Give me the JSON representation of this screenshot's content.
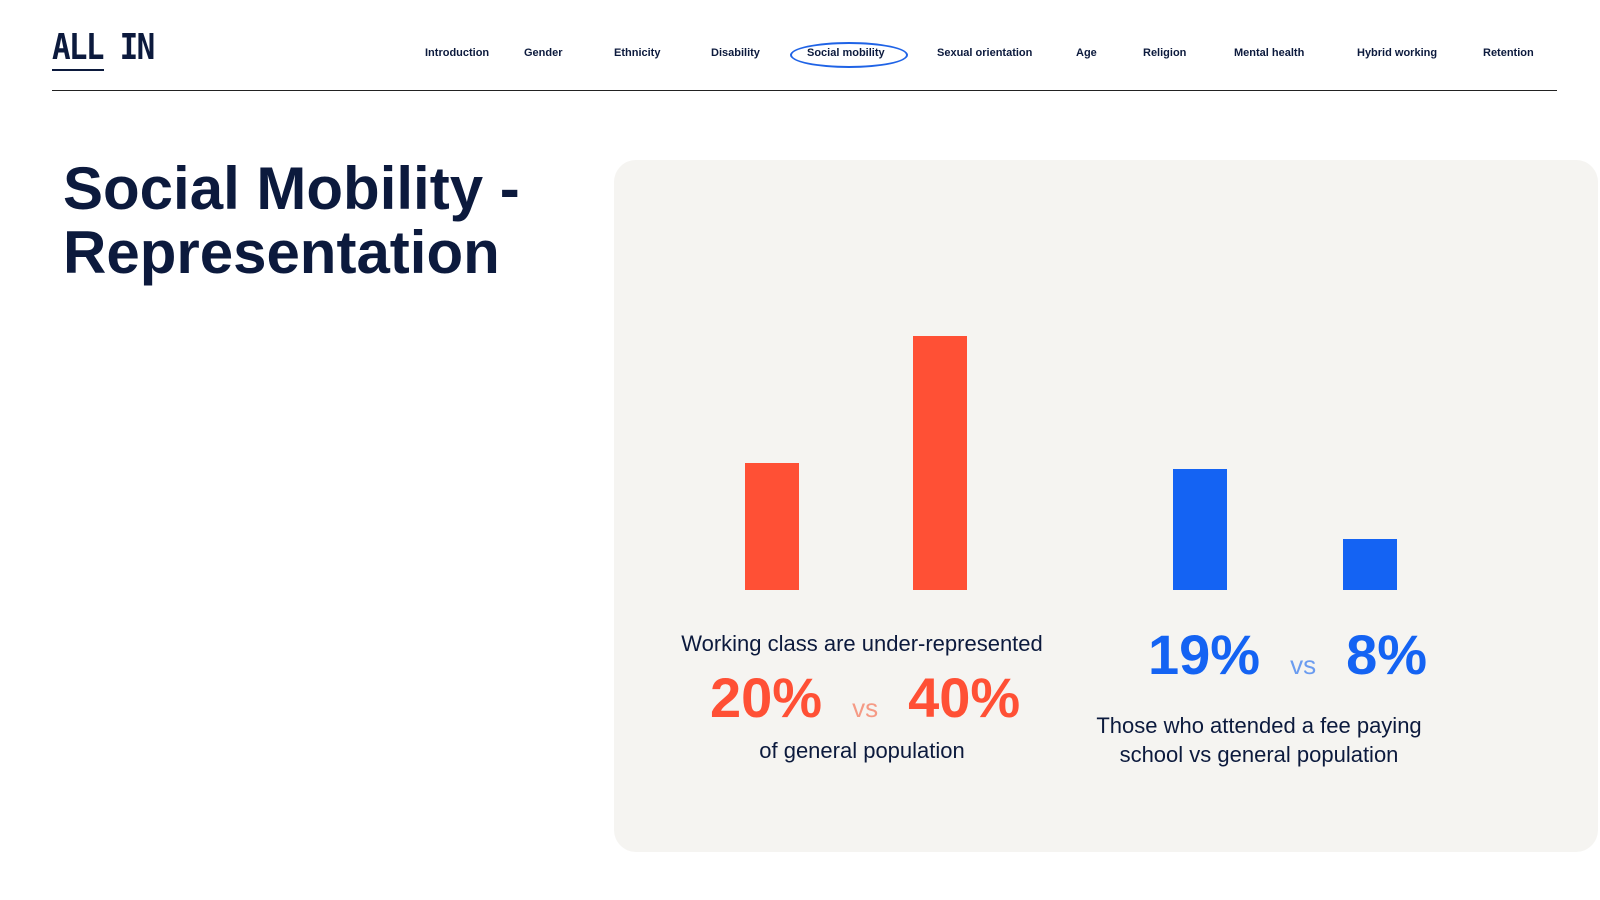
{
  "header": {
    "logo": "ALL IN",
    "nav": [
      {
        "label": "Introduction"
      },
      {
        "label": "Gender"
      },
      {
        "label": "Ethnicity"
      },
      {
        "label": "Disability"
      },
      {
        "label": "Social mobility",
        "active": true
      },
      {
        "label": "Sexual orientation"
      },
      {
        "label": "Age"
      },
      {
        "label": "Religion"
      },
      {
        "label": "Mental health"
      },
      {
        "label": "Hybrid working"
      },
      {
        "label": "Retention"
      }
    ]
  },
  "page": {
    "title": "Social Mobility - Representation"
  },
  "colors": {
    "navy": "#0c1a3d",
    "red": "#ff5035",
    "red_light": "#f59a85",
    "blue": "#1463f3",
    "blue_light": "#6b9cf0",
    "panel_bg": "#f5f4f1",
    "active_ring": "#1f63e6"
  },
  "chart_data": [
    {
      "type": "bar",
      "categories": [
        "",
        ""
      ],
      "values": [
        20,
        40
      ],
      "color": "#ff5035"
    },
    {
      "type": "bar",
      "categories": [
        "",
        ""
      ],
      "values": [
        19,
        8
      ],
      "color": "#1463f3"
    }
  ],
  "stats": {
    "working_class": {
      "headline": "Working class are under-represented",
      "value_a": "20%",
      "vs": "vs",
      "value_b": "40%",
      "footer": "of general population"
    },
    "fee_paying": {
      "value_a": "19%",
      "vs": "vs",
      "value_b": "8%",
      "footer_line1": "Those who attended a fee paying",
      "footer_line2": "school vs general population"
    }
  }
}
